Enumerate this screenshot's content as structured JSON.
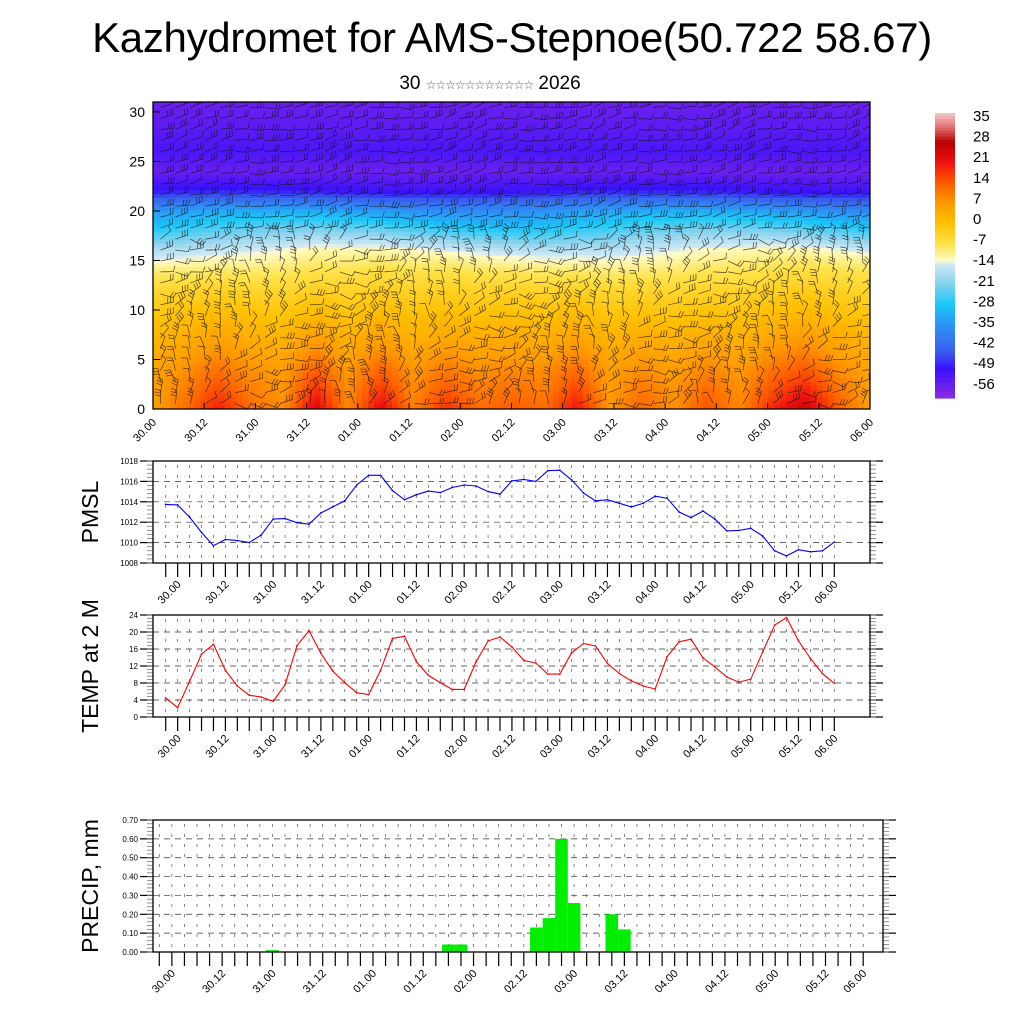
{
  "header": {
    "title": "Kazhydromet for AMS-Stepnoe(50.722 58.67)",
    "subtitle_day": "30",
    "subtitle_month_glyphs": "☆☆☆☆☆☆☆☆☆☆☆",
    "subtitle_year": "2026"
  },
  "time_labels": [
    "30.00",
    "30.12",
    "31.00",
    "31.12",
    "01.00",
    "01.12",
    "02.00",
    "02.12",
    "03.00",
    "03.12",
    "04.00",
    "04.12",
    "05.00",
    "05.12",
    "06.00"
  ],
  "chart_data": [
    {
      "id": "cross-section",
      "type": "heatmap",
      "title": "",
      "xlabel": "",
      "ylabel": "",
      "ylim": [
        0,
        31
      ],
      "yticks": [
        0,
        5,
        10,
        15,
        20,
        25,
        30
      ],
      "x_tick_labels": [
        "30.00",
        "30.12",
        "31.00",
        "31.12",
        "01.00",
        "01.12",
        "02.00",
        "02.12",
        "03.00",
        "03.12",
        "04.00",
        "04.12",
        "05.00",
        "05.12",
        "06.00"
      ],
      "overlay": "wind barbs",
      "colorbar": {
        "labels": [
          "35",
          "28",
          "21",
          "14",
          "7",
          "0",
          "-7",
          "-14",
          "-21",
          "-28",
          "-35",
          "-42",
          "-49",
          "-56"
        ],
        "range": [
          -60,
          38
        ],
        "stops": [
          {
            "v": -60,
            "c": "#8a2be2"
          },
          {
            "v": -50,
            "c": "#3a10ff"
          },
          {
            "v": -44,
            "c": "#3a5ff0"
          },
          {
            "v": -36,
            "c": "#2f8cf5"
          },
          {
            "v": -28,
            "c": "#18c8f8"
          },
          {
            "v": -20,
            "c": "#8ed4ee"
          },
          {
            "v": -14,
            "c": "#cfe9f5"
          },
          {
            "v": -13,
            "c": "#fffccc"
          },
          {
            "v": -7,
            "c": "#ffe34a"
          },
          {
            "v": 0,
            "c": "#ffc000"
          },
          {
            "v": 7,
            "c": "#ff9a00"
          },
          {
            "v": 14,
            "c": "#ff5a00"
          },
          {
            "v": 21,
            "c": "#f01010"
          },
          {
            "v": 28,
            "c": "#b80000"
          },
          {
            "v": 33,
            "c": "#e07070"
          },
          {
            "v": 38,
            "c": "#f6c8c8"
          }
        ]
      },
      "levels": [
        0,
        2,
        4,
        6,
        8,
        10,
        12,
        14,
        16,
        18,
        20,
        22,
        24,
        26,
        28,
        31
      ],
      "profile_mean_temp": [
        12,
        10,
        8,
        5,
        2,
        -1,
        -4,
        -8,
        -14,
        -24,
        -34,
        -50,
        -56,
        -52,
        -54,
        -56
      ],
      "surface_anomaly_by_time": [
        -6,
        0,
        8,
        0,
        -4,
        12,
        -3,
        11,
        -2,
        6,
        0,
        2,
        0,
        9,
        -5,
        1,
        -4,
        3,
        -3,
        7,
        14,
        2,
        -6
      ]
    },
    {
      "id": "pmsl",
      "type": "line",
      "ylabel": "PMSL",
      "ylim": [
        1008,
        1018
      ],
      "yticks": [
        1008,
        1010,
        1012,
        1014,
        1016,
        1018
      ],
      "color": "#0000ff",
      "label_index": [
        1,
        5,
        9,
        13,
        17,
        21,
        25,
        29,
        33,
        37,
        41,
        45,
        49,
        53,
        56
      ],
      "values": [
        1013.75,
        1013.7,
        1012.5,
        1011.0,
        1009.7,
        1010.3,
        1010.2,
        1010.0,
        1010.75,
        1012.3,
        1012.35,
        1011.95,
        1011.8,
        1012.9,
        1013.5,
        1014.1,
        1015.65,
        1016.6,
        1016.6,
        1015.1,
        1014.2,
        1014.7,
        1015.05,
        1014.9,
        1015.4,
        1015.65,
        1015.55,
        1015.0,
        1014.75,
        1016.05,
        1016.2,
        1016.0,
        1017.05,
        1017.1,
        1016.15,
        1014.85,
        1014.1,
        1014.2,
        1013.85,
        1013.5,
        1013.85,
        1014.55,
        1014.35,
        1013.0,
        1012.45,
        1013.1,
        1012.3,
        1011.15,
        1011.2,
        1011.4,
        1010.65,
        1009.2,
        1008.7,
        1009.3,
        1009.1,
        1009.2,
        1010.05
      ]
    },
    {
      "id": "temp2m",
      "type": "line",
      "ylabel": "TEMP at 2 M",
      "ylim": [
        0,
        24
      ],
      "yticks": [
        0,
        4,
        8,
        12,
        16,
        20,
        24
      ],
      "color": "#ff0000",
      "label_index": [
        1,
        5,
        9,
        13,
        17,
        21,
        25,
        29,
        33,
        37,
        41,
        45,
        49,
        53,
        56
      ],
      "values": [
        4.5,
        2.2,
        8.4,
        14.8,
        17.1,
        11.0,
        7.3,
        5.1,
        4.7,
        3.7,
        7.6,
        16.8,
        20.3,
        15.0,
        10.8,
        8.1,
        5.7,
        5.3,
        11.0,
        18.5,
        19.0,
        13.0,
        9.8,
        8.1,
        6.5,
        6.5,
        13.0,
        17.9,
        18.8,
        16.5,
        13.3,
        12.7,
        10.1,
        10.1,
        15.1,
        17.3,
        16.7,
        12.6,
        10.2,
        8.5,
        7.3,
        6.6,
        14.2,
        17.7,
        18.3,
        13.9,
        11.8,
        9.4,
        8.2,
        8.9,
        15.3,
        21.6,
        23.4,
        17.9,
        13.8,
        10.2,
        7.9
      ]
    },
    {
      "id": "precip",
      "type": "bar",
      "ylabel": "PRECIP, mm",
      "ylim": [
        0,
        0.7
      ],
      "yticks": [
        "0.00",
        "0.10",
        "0.20",
        "0.30",
        "0.40",
        "0.50",
        "0.60",
        "0.70"
      ],
      "color": "#00ee00",
      "label_index": [
        1,
        5,
        9,
        13,
        17,
        21,
        25,
        29,
        33,
        37,
        41,
        45,
        49,
        53,
        56
      ],
      "n_points": 57,
      "bars": [
        {
          "index": 9,
          "value": 0.01
        },
        {
          "index": 23,
          "value": 0.04
        },
        {
          "index": 24,
          "value": 0.04
        },
        {
          "index": 30,
          "value": 0.13
        },
        {
          "index": 31,
          "value": 0.18
        },
        {
          "index": 32,
          "value": 0.6
        },
        {
          "index": 33,
          "value": 0.26
        },
        {
          "index": 36,
          "value": 0.2
        },
        {
          "index": 37,
          "value": 0.12
        }
      ]
    }
  ]
}
